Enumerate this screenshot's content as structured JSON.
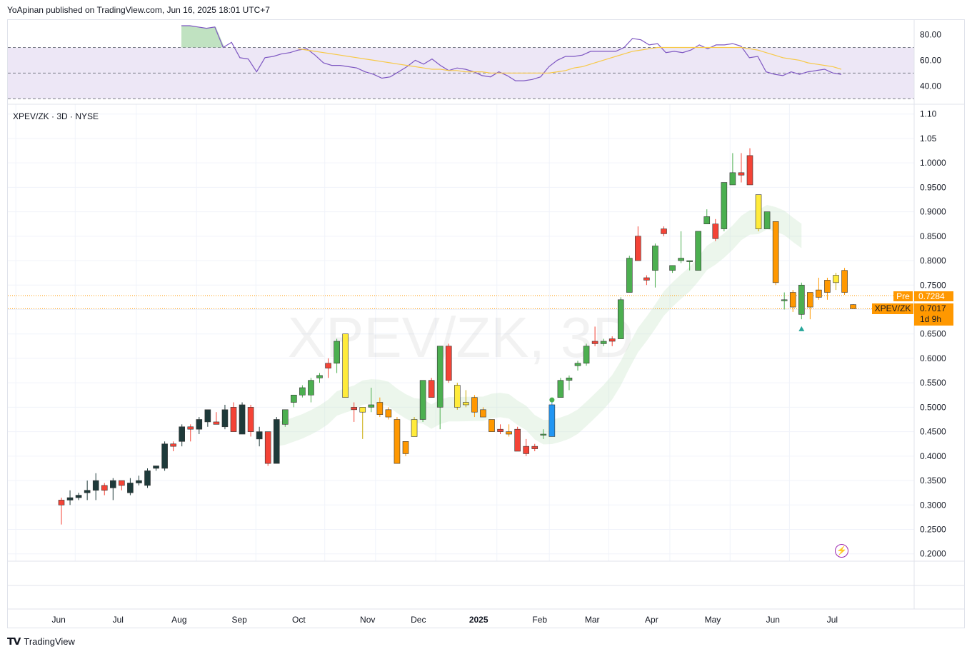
{
  "header": {
    "text": "YoApinan published on TradingView.com, Jun 16, 2025 18:01 UTC+7"
  },
  "chart": {
    "symbol_label": "XPEV/ZK · 3D · NYSE",
    "watermark": "XPEV/ZK, 3D"
  },
  "price_labels": {
    "pre_tag": "Pre",
    "pre_value": "0.7284",
    "symbol_tag": "XPEV/ZK",
    "last_value": "0.7017",
    "countdown": "1d 9h"
  },
  "footer": {
    "brand": "TradingView"
  },
  "colors": {
    "rsi_line": "#7e57c2",
    "rsi_ma": "#f7c948",
    "rsi_band": "#ede7f6",
    "bull": "#4caf50",
    "bear": "#1e3a3a",
    "orange": "#ff9800",
    "yellow": "#ffeb3b",
    "blue": "#2196f3",
    "red": "#f44336",
    "cloud": "#c8e6c9"
  },
  "chart_data": [
    {
      "type": "line",
      "name": "RSI pane",
      "y_ticks": [
        "80.00",
        "60.00",
        "40.00"
      ],
      "y_tick_values": [
        80,
        60,
        40
      ],
      "ylim": [
        29,
        87
      ],
      "band_levels": [
        70,
        50,
        30
      ],
      "rsi": [
        87,
        87,
        86,
        85,
        86,
        70,
        74,
        62,
        61,
        51,
        62,
        63,
        65,
        66,
        68,
        69,
        64,
        58,
        56,
        56,
        55,
        54,
        51,
        49,
        46,
        47,
        51,
        55,
        60,
        57,
        61,
        56,
        52,
        54,
        53,
        51,
        48,
        47,
        51,
        48,
        44,
        44,
        45,
        47,
        55,
        60,
        63,
        63,
        64,
        67,
        67,
        67,
        67,
        70,
        77,
        76,
        72,
        73,
        66,
        67,
        66,
        68,
        72,
        69,
        72,
        72,
        73,
        71,
        62,
        63,
        51,
        49,
        48,
        51,
        49,
        51,
        52,
        53,
        50,
        49
      ],
      "rsi_ma": [
        null,
        null,
        null,
        null,
        null,
        null,
        null,
        null,
        null,
        null,
        null,
        null,
        null,
        null,
        69,
        68,
        67,
        66,
        65,
        64,
        63,
        62,
        61,
        60,
        59,
        58,
        57,
        56,
        55,
        54,
        53,
        53,
        52,
        52,
        51,
        51,
        51,
        50,
        50,
        50,
        50,
        50,
        50,
        50,
        50,
        51,
        52,
        54,
        55,
        57,
        59,
        61,
        63,
        65,
        67,
        68,
        69,
        70,
        70,
        70,
        70,
        70,
        70,
        70,
        70,
        70,
        70,
        70,
        69,
        68,
        66,
        64,
        62,
        61,
        60,
        58,
        57,
        56,
        55,
        53
      ]
    },
    {
      "type": "candlestick",
      "title": "XPEV/ZK · 3D · NYSE",
      "y_ticks": [
        "1.10",
        "1.05",
        "1.0000",
        "0.9500",
        "0.9000",
        "0.8500",
        "0.8000",
        "0.7500",
        "0.7000",
        "0.6500",
        "0.6000",
        "0.5500",
        "0.5000",
        "0.4500",
        "0.4000",
        "0.3500",
        "0.3000",
        "0.2500",
        "0.2000"
      ],
      "y_tick_values": [
        1.1,
        1.05,
        1.0,
        0.95,
        0.9,
        0.85,
        0.8,
        0.75,
        0.7,
        0.65,
        0.6,
        0.55,
        0.5,
        0.45,
        0.4,
        0.35,
        0.3,
        0.25,
        0.2
      ],
      "ylim": [
        0.185,
        1.12
      ],
      "x_ticks": [
        "Jun",
        "Jul",
        "Aug",
        "Sep",
        "Oct",
        "Nov",
        "Dec",
        "2025",
        "Feb",
        "Mar",
        "Apr",
        "May",
        "Jun",
        "Jul"
      ],
      "x_tick_positions": [
        6.7,
        13.6,
        20.7,
        27.7,
        34.6,
        42.6,
        48.5,
        55.5,
        62.6,
        68.7,
        75.6,
        82.7,
        89.7,
        96.6
      ],
      "last_price": 0.7017,
      "pre_price": 0.7284,
      "candles": [
        {
          "o": 0.31,
          "h": 0.315,
          "l": 0.26,
          "c": 0.3,
          "col": "red"
        },
        {
          "o": 0.31,
          "h": 0.33,
          "l": 0.3,
          "c": 0.315,
          "col": "bear"
        },
        {
          "o": 0.32,
          "h": 0.325,
          "l": 0.31,
          "c": 0.315,
          "col": "bear"
        },
        {
          "o": 0.33,
          "h": 0.35,
          "l": 0.31,
          "c": 0.325,
          "col": "bear"
        },
        {
          "o": 0.35,
          "h": 0.365,
          "l": 0.31,
          "c": 0.33,
          "col": "bear"
        },
        {
          "o": 0.33,
          "h": 0.345,
          "l": 0.32,
          "c": 0.34,
          "col": "red"
        },
        {
          "o": 0.35,
          "h": 0.355,
          "l": 0.31,
          "c": 0.335,
          "col": "bear"
        },
        {
          "o": 0.34,
          "h": 0.35,
          "l": 0.33,
          "c": 0.35,
          "col": "red"
        },
        {
          "o": 0.345,
          "h": 0.355,
          "l": 0.32,
          "c": 0.325,
          "col": "bear"
        },
        {
          "o": 0.35,
          "h": 0.36,
          "l": 0.34,
          "c": 0.345,
          "col": "bear"
        },
        {
          "o": 0.37,
          "h": 0.375,
          "l": 0.335,
          "c": 0.34,
          "col": "bear"
        },
        {
          "o": 0.38,
          "h": 0.38,
          "l": 0.37,
          "c": 0.375,
          "col": "bear"
        },
        {
          "o": 0.425,
          "h": 0.43,
          "l": 0.37,
          "c": 0.375,
          "col": "bear"
        },
        {
          "o": 0.425,
          "h": 0.43,
          "l": 0.41,
          "c": 0.42,
          "col": "red"
        },
        {
          "o": 0.46,
          "h": 0.465,
          "l": 0.42,
          "c": 0.43,
          "col": "bear"
        },
        {
          "o": 0.455,
          "h": 0.465,
          "l": 0.43,
          "c": 0.46,
          "col": "red"
        },
        {
          "o": 0.475,
          "h": 0.48,
          "l": 0.445,
          "c": 0.455,
          "col": "bear"
        },
        {
          "o": 0.495,
          "h": 0.49,
          "l": 0.46,
          "c": 0.47,
          "col": "bear"
        },
        {
          "o": 0.47,
          "h": 0.49,
          "l": 0.465,
          "c": 0.465,
          "col": "red"
        },
        {
          "o": 0.495,
          "h": 0.505,
          "l": 0.455,
          "c": 0.46,
          "col": "bear"
        },
        {
          "o": 0.5,
          "h": 0.51,
          "l": 0.45,
          "c": 0.45,
          "col": "red"
        },
        {
          "o": 0.505,
          "h": 0.51,
          "l": 0.445,
          "c": 0.445,
          "col": "bear"
        },
        {
          "o": 0.5,
          "h": 0.505,
          "l": 0.44,
          "c": 0.45,
          "col": "red"
        },
        {
          "o": 0.45,
          "h": 0.46,
          "l": 0.42,
          "c": 0.435,
          "col": "bear"
        },
        {
          "o": 0.45,
          "h": 0.45,
          "l": 0.38,
          "c": 0.385,
          "col": "red"
        },
        {
          "o": 0.385,
          "h": 0.48,
          "l": 0.385,
          "c": 0.475,
          "col": "bear"
        },
        {
          "o": 0.465,
          "h": 0.495,
          "l": 0.46,
          "c": 0.495,
          "col": "bull"
        },
        {
          "o": 0.51,
          "h": 0.525,
          "l": 0.5,
          "c": 0.525,
          "col": "bull"
        },
        {
          "o": 0.525,
          "h": 0.545,
          "l": 0.52,
          "c": 0.54,
          "col": "bull"
        },
        {
          "o": 0.525,
          "h": 0.56,
          "l": 0.51,
          "c": 0.555,
          "col": "bull"
        },
        {
          "o": 0.56,
          "h": 0.57,
          "l": 0.55,
          "c": 0.565,
          "col": "bull"
        },
        {
          "o": 0.59,
          "h": 0.6,
          "l": 0.56,
          "c": 0.58,
          "col": "red"
        },
        {
          "o": 0.59,
          "h": 0.64,
          "l": 0.57,
          "c": 0.635,
          "col": "bull"
        },
        {
          "o": 0.65,
          "h": 0.65,
          "l": 0.52,
          "c": 0.52,
          "col": "yellow"
        },
        {
          "o": 0.5,
          "h": 0.51,
          "l": 0.47,
          "c": 0.495,
          "col": "red"
        },
        {
          "o": 0.49,
          "h": 0.5,
          "l": 0.435,
          "c": 0.5,
          "col": "yellow"
        },
        {
          "o": 0.505,
          "h": 0.54,
          "l": 0.49,
          "c": 0.5,
          "col": "bull"
        },
        {
          "o": 0.51,
          "h": 0.52,
          "l": 0.48,
          "c": 0.485,
          "col": "orange"
        },
        {
          "o": 0.495,
          "h": 0.5,
          "l": 0.475,
          "c": 0.48,
          "col": "orange"
        },
        {
          "o": 0.475,
          "h": 0.48,
          "l": 0.385,
          "c": 0.385,
          "col": "orange"
        },
        {
          "o": 0.405,
          "h": 0.43,
          "l": 0.4,
          "c": 0.43,
          "col": "orange"
        },
        {
          "o": 0.44,
          "h": 0.48,
          "l": 0.44,
          "c": 0.475,
          "col": "yellow"
        },
        {
          "o": 0.475,
          "h": 0.555,
          "l": 0.47,
          "c": 0.555,
          "col": "bull"
        },
        {
          "o": 0.555,
          "h": 0.56,
          "l": 0.52,
          "c": 0.52,
          "col": "red"
        },
        {
          "o": 0.5,
          "h": 0.625,
          "l": 0.455,
          "c": 0.625,
          "col": "bull"
        },
        {
          "o": 0.625,
          "h": 0.63,
          "l": 0.55,
          "c": 0.555,
          "col": "red"
        },
        {
          "o": 0.545,
          "h": 0.55,
          "l": 0.495,
          "c": 0.5,
          "col": "yellow"
        },
        {
          "o": 0.51,
          "h": 0.535,
          "l": 0.5,
          "c": 0.505,
          "col": "yellow"
        },
        {
          "o": 0.52,
          "h": 0.525,
          "l": 0.48,
          "c": 0.49,
          "col": "orange"
        },
        {
          "o": 0.495,
          "h": 0.5,
          "l": 0.48,
          "c": 0.48,
          "col": "orange"
        },
        {
          "o": 0.475,
          "h": 0.475,
          "l": 0.45,
          "c": 0.45,
          "col": "orange"
        },
        {
          "o": 0.455,
          "h": 0.465,
          "l": 0.445,
          "c": 0.45,
          "col": "red"
        },
        {
          "o": 0.45,
          "h": 0.465,
          "l": 0.44,
          "c": 0.445,
          "col": "orange"
        },
        {
          "o": 0.455,
          "h": 0.46,
          "l": 0.41,
          "c": 0.41,
          "col": "red"
        },
        {
          "o": 0.42,
          "h": 0.435,
          "l": 0.4,
          "c": 0.405,
          "col": "red"
        },
        {
          "o": 0.42,
          "h": 0.425,
          "l": 0.41,
          "c": 0.415,
          "col": "red"
        },
        {
          "o": 0.445,
          "h": 0.455,
          "l": 0.435,
          "c": 0.445,
          "col": "bull"
        },
        {
          "o": 0.44,
          "h": 0.51,
          "l": 0.44,
          "c": 0.505,
          "col": "blue"
        },
        {
          "o": 0.52,
          "h": 0.56,
          "l": 0.52,
          "c": 0.555,
          "col": "bull"
        },
        {
          "o": 0.555,
          "h": 0.565,
          "l": 0.535,
          "c": 0.56,
          "col": "bull"
        },
        {
          "o": 0.585,
          "h": 0.595,
          "l": 0.575,
          "c": 0.59,
          "col": "bull"
        },
        {
          "o": 0.59,
          "h": 0.63,
          "l": 0.585,
          "c": 0.625,
          "col": "bull"
        },
        {
          "o": 0.63,
          "h": 0.665,
          "l": 0.625,
          "c": 0.635,
          "col": "red"
        },
        {
          "o": 0.63,
          "h": 0.64,
          "l": 0.625,
          "c": 0.635,
          "col": "bull"
        },
        {
          "o": 0.64,
          "h": 0.645,
          "l": 0.625,
          "c": 0.635,
          "col": "red"
        },
        {
          "o": 0.64,
          "h": 0.725,
          "l": 0.64,
          "c": 0.72,
          "col": "bull"
        },
        {
          "o": 0.735,
          "h": 0.81,
          "l": 0.735,
          "c": 0.805,
          "col": "bull"
        },
        {
          "o": 0.85,
          "h": 0.87,
          "l": 0.8,
          "c": 0.8,
          "col": "red"
        },
        {
          "o": 0.765,
          "h": 0.77,
          "l": 0.75,
          "c": 0.76,
          "col": "red"
        },
        {
          "o": 0.78,
          "h": 0.835,
          "l": 0.745,
          "c": 0.83,
          "col": "bull"
        },
        {
          "o": 0.865,
          "h": 0.87,
          "l": 0.85,
          "c": 0.855,
          "col": "red"
        },
        {
          "o": 0.78,
          "h": 0.79,
          "l": 0.775,
          "c": 0.79,
          "col": "bull"
        },
        {
          "o": 0.8,
          "h": 0.86,
          "l": 0.795,
          "c": 0.805,
          "col": "bull"
        },
        {
          "o": 0.8,
          "h": 0.8,
          "l": 0.78,
          "c": 0.8,
          "col": "bull"
        },
        {
          "o": 0.78,
          "h": 0.86,
          "l": 0.78,
          "c": 0.86,
          "col": "bull"
        },
        {
          "o": 0.875,
          "h": 0.905,
          "l": 0.875,
          "c": 0.89,
          "col": "bull"
        },
        {
          "o": 0.875,
          "h": 0.885,
          "l": 0.84,
          "c": 0.845,
          "col": "red"
        },
        {
          "o": 0.865,
          "h": 0.96,
          "l": 0.86,
          "c": 0.96,
          "col": "bull"
        },
        {
          "o": 0.955,
          "h": 1.02,
          "l": 0.955,
          "c": 0.98,
          "col": "bull"
        },
        {
          "o": 0.98,
          "h": 1.02,
          "l": 0.96,
          "c": 0.975,
          "col": "red"
        },
        {
          "o": 1.015,
          "h": 1.03,
          "l": 0.955,
          "c": 0.955,
          "col": "red"
        },
        {
          "o": 0.935,
          "h": 0.935,
          "l": 0.86,
          "c": 0.865,
          "col": "yellow"
        },
        {
          "o": 0.865,
          "h": 0.9,
          "l": 0.865,
          "c": 0.9,
          "col": "bull"
        },
        {
          "o": 0.88,
          "h": 0.88,
          "l": 0.75,
          "c": 0.755,
          "col": "orange"
        },
        {
          "o": 0.72,
          "h": 0.735,
          "l": 0.7,
          "c": 0.72,
          "col": "bull"
        },
        {
          "o": 0.735,
          "h": 0.74,
          "l": 0.695,
          "c": 0.705,
          "col": "orange"
        },
        {
          "o": 0.69,
          "h": 0.755,
          "l": 0.68,
          "c": 0.75,
          "col": "bull"
        },
        {
          "o": 0.735,
          "h": 0.735,
          "l": 0.68,
          "c": 0.705,
          "col": "orange"
        },
        {
          "o": 0.725,
          "h": 0.765,
          "l": 0.72,
          "c": 0.74,
          "col": "orange"
        },
        {
          "o": 0.735,
          "h": 0.765,
          "l": 0.72,
          "c": 0.76,
          "col": "orange"
        },
        {
          "o": 0.755,
          "h": 0.775,
          "l": 0.74,
          "c": 0.77,
          "col": "yellow"
        },
        {
          "o": 0.78,
          "h": 0.785,
          "l": 0.73,
          "c": 0.735,
          "col": "orange"
        },
        {
          "o": 0.71,
          "h": 0.711,
          "l": 0.701,
          "c": 0.7017,
          "col": "orange"
        }
      ],
      "markers": [
        {
          "index": 57,
          "price": 0.515,
          "shape": "dot",
          "col": "bull"
        },
        {
          "index": 86,
          "price": 0.66,
          "shape": "triangle",
          "col": "teal"
        }
      ]
    }
  ]
}
